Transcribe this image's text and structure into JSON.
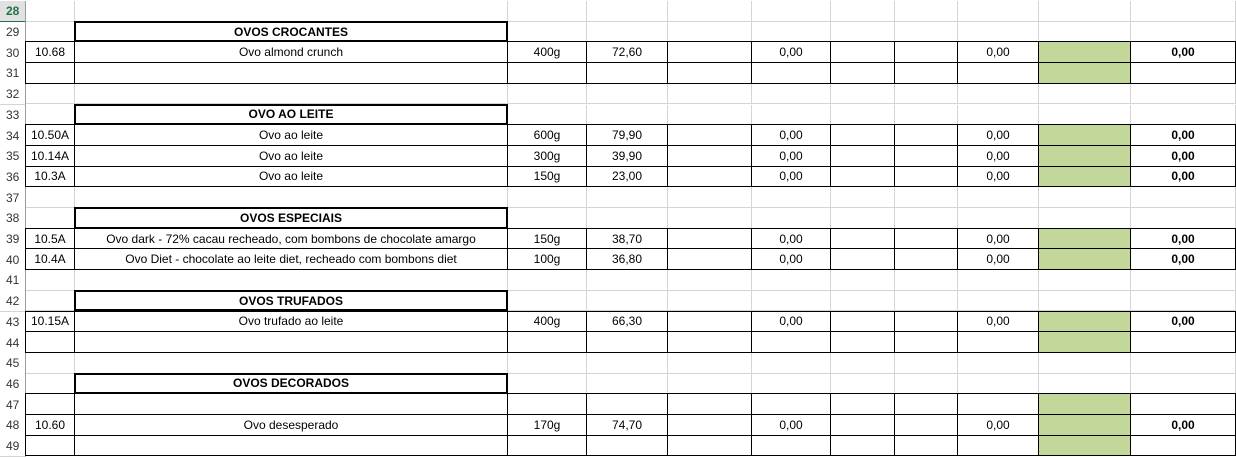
{
  "rows": [
    {
      "row": "28"
    },
    {
      "row": "29",
      "section": "OVOS CROCANTES"
    },
    {
      "row": "30",
      "code": "10.68",
      "product": "Ovo almond crunch",
      "size": "400g",
      "price": "72,60",
      "value1": "0,00",
      "value2": "0,00",
      "total": "0,00",
      "fill": "#c4d79b"
    },
    {
      "row": "31",
      "fill": "#c4d79b"
    },
    {
      "row": "32"
    },
    {
      "row": "33",
      "section": "OVO AO LEITE"
    },
    {
      "row": "34",
      "code": "10.50A",
      "product": "Ovo ao leite",
      "size": "600g",
      "price": "79,90",
      "value1": "0,00",
      "value2": "0,00",
      "total": "0,00",
      "fill": "#c4d79b"
    },
    {
      "row": "35",
      "code": "10.14A",
      "product": "Ovo ao leite",
      "size": "300g",
      "price": "39,90",
      "value1": "0,00",
      "value2": "0,00",
      "total": "0,00",
      "fill": "#c4d79b"
    },
    {
      "row": "36",
      "code": "10.3A",
      "product": "Ovo ao leite",
      "size": "150g",
      "price": "23,00",
      "value1": "0,00",
      "value2": "0,00",
      "total": "0,00",
      "fill": "#c4d79b"
    },
    {
      "row": "37"
    },
    {
      "row": "38",
      "section": "OVOS ESPECIAIS"
    },
    {
      "row": "39",
      "code": "10.5A",
      "product": "Ovo dark - 72% cacau recheado, com bombons de chocolate amargo",
      "size": "150g",
      "price": "38,70",
      "value1": "0,00",
      "value2": "0,00",
      "total": "0,00",
      "fill": "#c4d79b"
    },
    {
      "row": "40",
      "code": "10.4A",
      "product": "Ovo Diet - chocolate ao leite diet, recheado com bombons diet",
      "size": "100g",
      "price": "36,80",
      "value1": "0,00",
      "value2": "0,00",
      "total": "0,00",
      "fill": "#c4d79b"
    },
    {
      "row": "41"
    },
    {
      "row": "42",
      "section": "OVOS TRUFADOS"
    },
    {
      "row": "43",
      "code": "10.15A",
      "product": "Ovo  trufado ao leite",
      "size": "400g",
      "price": "66,30",
      "value1": "0,00",
      "value2": "0,00",
      "total": "0,00",
      "fill": "#c4d79b"
    },
    {
      "row": "44",
      "fill": "#c4d79b"
    },
    {
      "row": "45"
    },
    {
      "row": "46",
      "section": "OVOS DECORADOS"
    },
    {
      "row": "47",
      "fill": "#c4d79b"
    },
    {
      "row": "48",
      "code": "10.60",
      "product": "Ovo desesperado",
      "size": "170g",
      "price": "74,70",
      "value1": "0,00",
      "value2": "0,00",
      "total": "0,00",
      "fill": "#c4d79b"
    },
    {
      "row": "49",
      "fill": "#c4d79b"
    }
  ]
}
